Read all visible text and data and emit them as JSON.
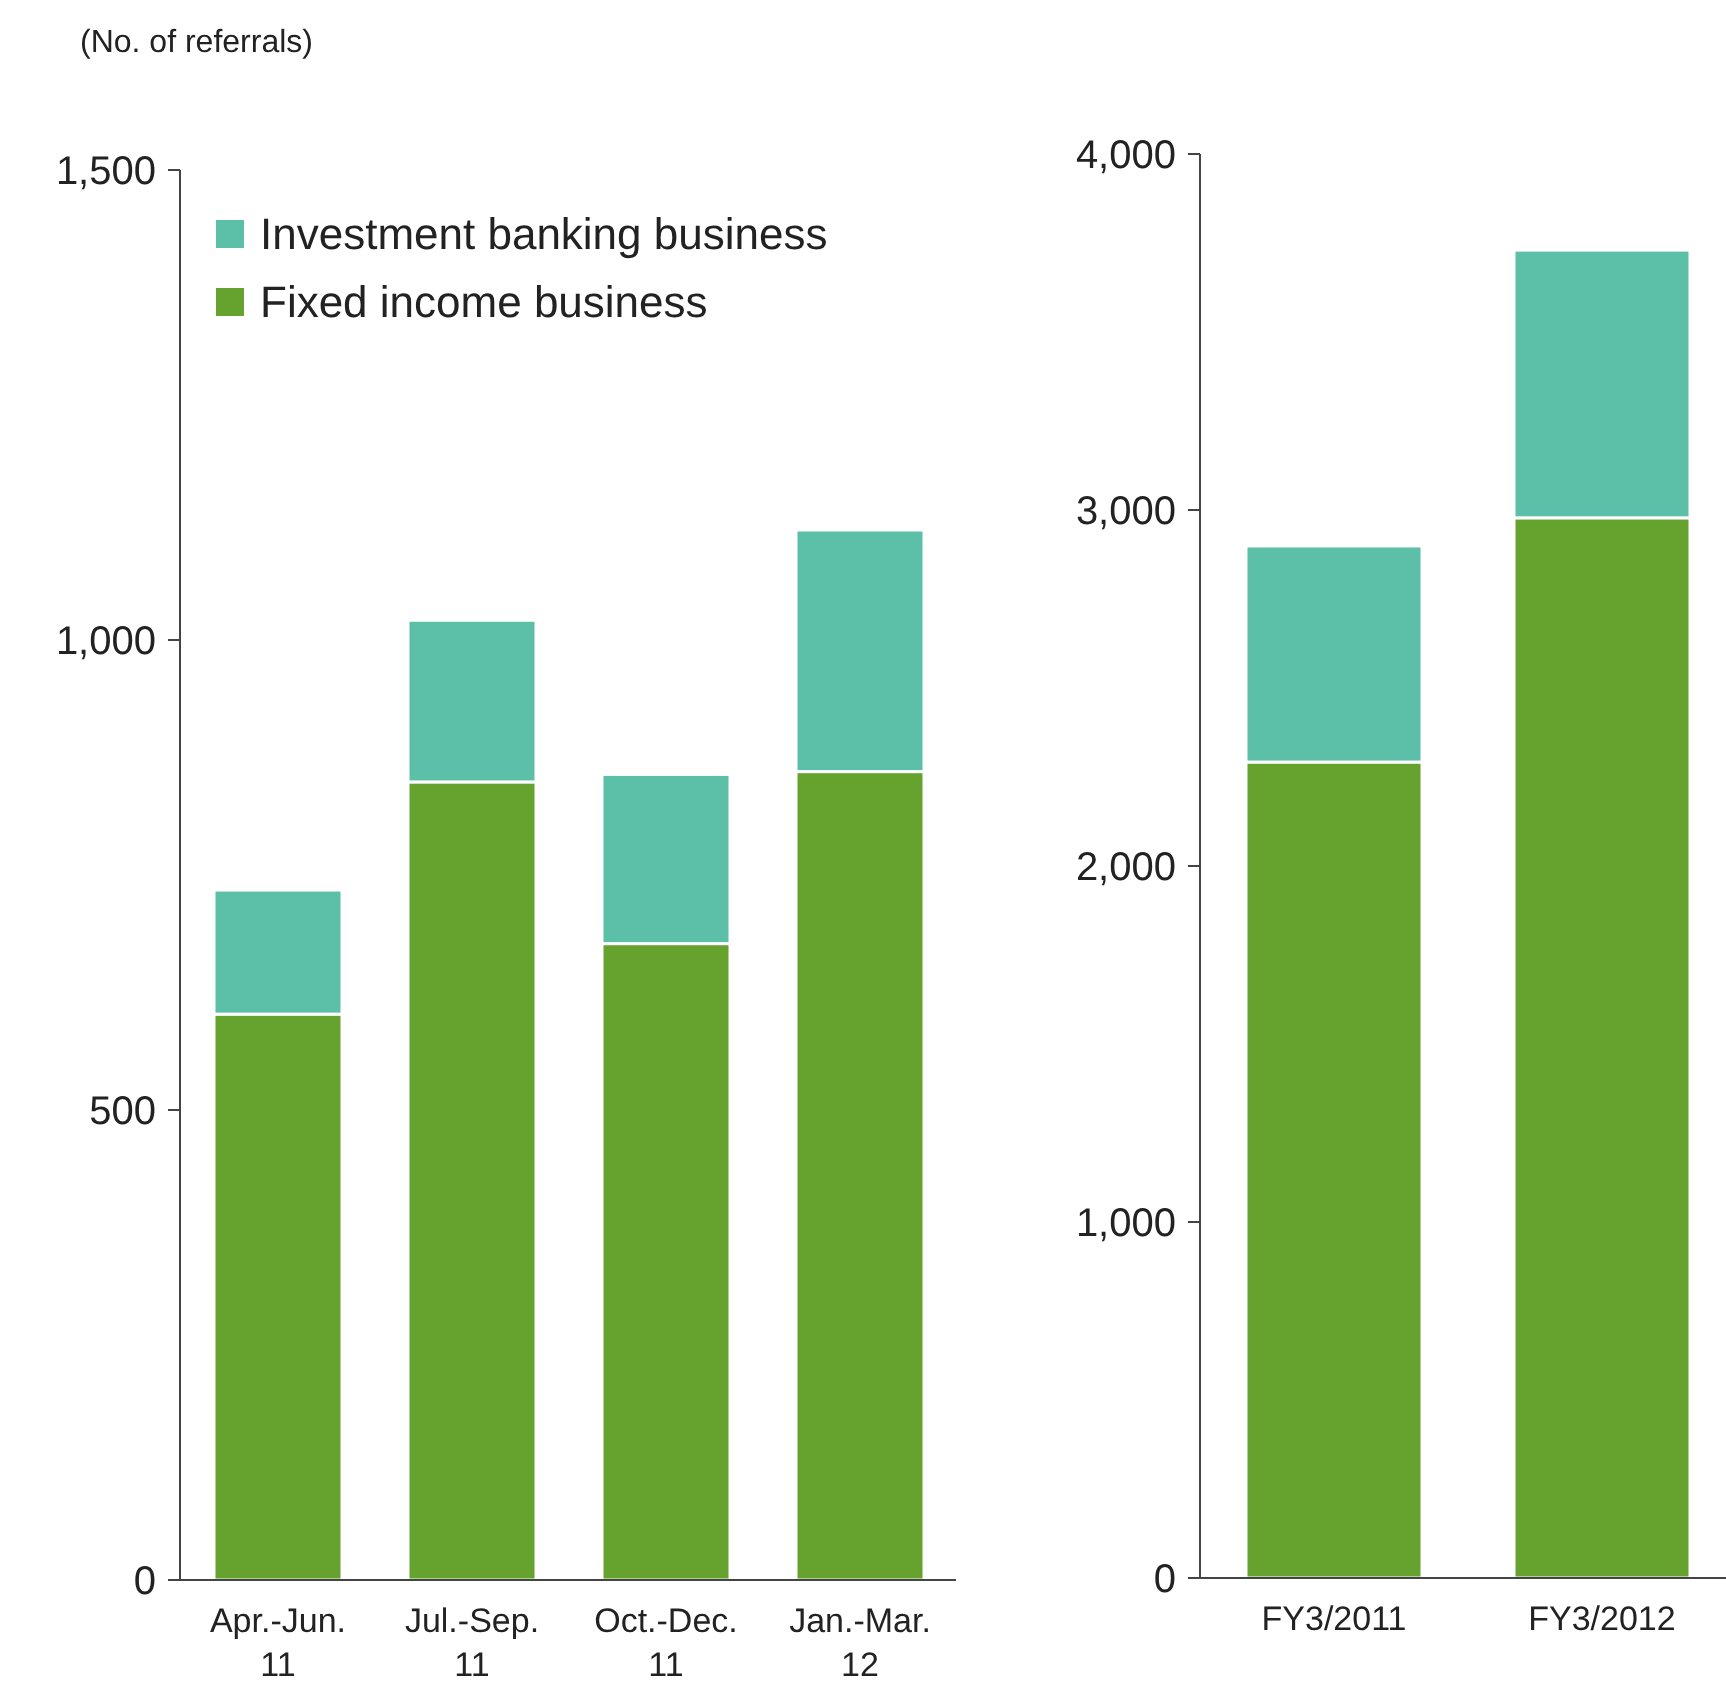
{
  "chart_data": [
    {
      "type": "bar",
      "stacked": true,
      "ylabel": "(No. of referrals)",
      "categories": [
        "Apr.-Jun. 11",
        "Jul.-Sep. 11",
        "Oct.-Dec. 11",
        "Jan.-Mar. 12"
      ],
      "series": [
        {
          "name": "Fixed income business",
          "color": "#66a22e",
          "values": [
            602,
            849,
            677,
            860
          ]
        },
        {
          "name": "Investment banking business",
          "color": "#5cbfa8",
          "values": [
            132,
            172,
            180,
            257
          ]
        }
      ],
      "ylim": [
        0,
        1500
      ],
      "yticks": [
        {
          "value": 0,
          "label": "0"
        },
        500,
        {
          "value": 1000,
          "label": "1,000"
        },
        {
          "value": 1500,
          "label": "1,500"
        }
      ],
      "legend": "top left"
    },
    {
      "type": "bar",
      "stacked": true,
      "categories": [
        "FY3/2011",
        "FY3/2012"
      ],
      "series": [
        {
          "color": "#66a22e",
          "values": [
            2292,
            2978
          ]
        },
        {
          "color": "#5cbfa8",
          "values": [
            607,
            752
          ]
        }
      ],
      "ylim": [
        0,
        4000
      ],
      "yticks": [
        {
          "value": 0,
          "label": "0"
        },
        {
          "value": 1000,
          "label": "1,000"
        },
        {
          "value": 2000,
          "label": "2,000"
        },
        {
          "value": 3000,
          "label": "3,000"
        },
        {
          "value": 4000,
          "label": "4,000"
        }
      ]
    }
  ]
}
